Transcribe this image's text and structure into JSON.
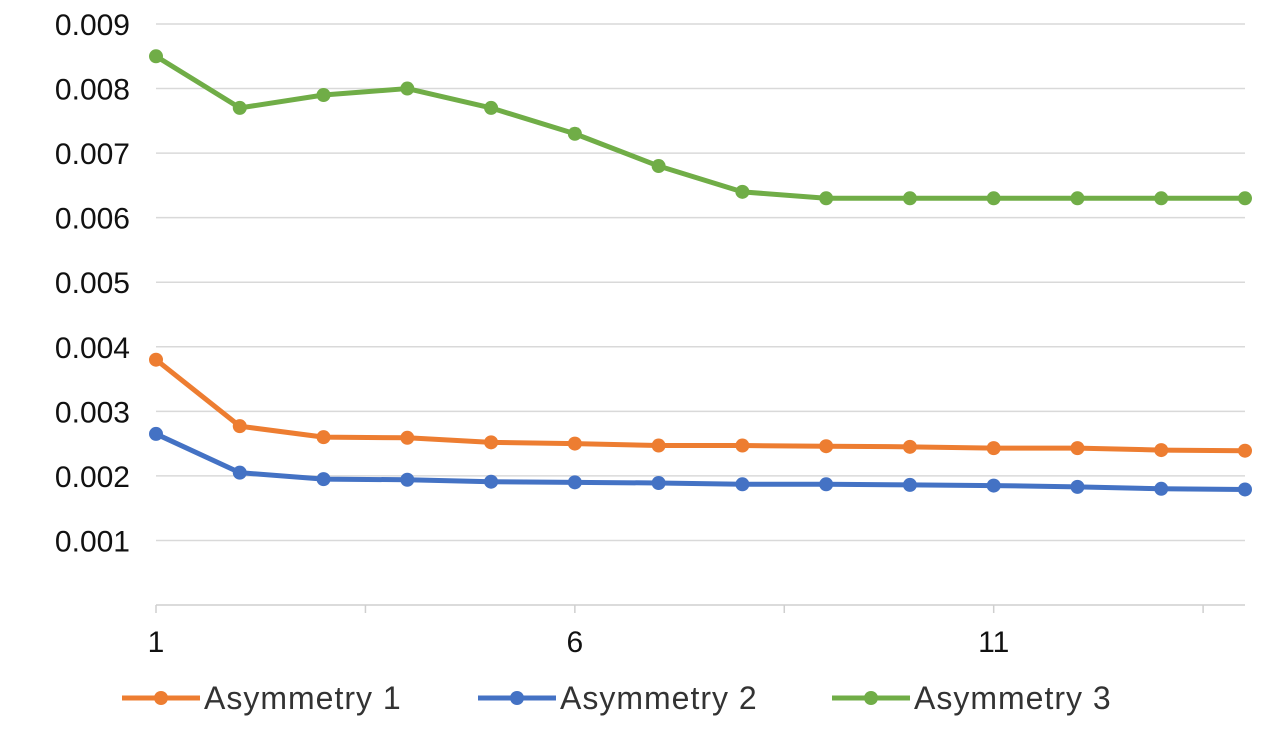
{
  "chart_data": {
    "type": "line",
    "title": "",
    "xlabel": "",
    "ylabel": "",
    "x": [
      1,
      2,
      3,
      4,
      5,
      6,
      7,
      8,
      9,
      10,
      11,
      12,
      13,
      14
    ],
    "x_tick_labels": [
      "1",
      "6",
      "11"
    ],
    "x_tick_values": [
      1,
      6,
      11
    ],
    "ylim": [
      0,
      0.009
    ],
    "y_tick_labels": [
      "0.001",
      "0.002",
      "0.003",
      "0.004",
      "0.005",
      "0.006",
      "0.007",
      "0.008",
      "0.009"
    ],
    "y_tick_values": [
      0.001,
      0.002,
      0.003,
      0.004,
      0.005,
      0.006,
      0.007,
      0.008,
      0.009
    ],
    "grid": true,
    "legend_position": "bottom",
    "series": [
      {
        "name": "Asymmetry 1",
        "color": "#ED7D31",
        "values": [
          0.0038,
          0.00277,
          0.0026,
          0.00259,
          0.00252,
          0.0025,
          0.00247,
          0.00247,
          0.00246,
          0.00245,
          0.00243,
          0.00243,
          0.0024,
          0.00239
        ]
      },
      {
        "name": "Asymmetry 2",
        "color": "#4472C4",
        "values": [
          0.00265,
          0.00205,
          0.00195,
          0.00194,
          0.00191,
          0.0019,
          0.00189,
          0.00187,
          0.00187,
          0.00186,
          0.00185,
          0.00183,
          0.0018,
          0.00179
        ]
      },
      {
        "name": "Asymmetry 3",
        "color": "#70AD47",
        "values": [
          0.0085,
          0.0077,
          0.0079,
          0.008,
          0.0077,
          0.0073,
          0.0068,
          0.0064,
          0.0063,
          0.0063,
          0.0063,
          0.0063,
          0.0063,
          0.0063
        ]
      }
    ]
  }
}
